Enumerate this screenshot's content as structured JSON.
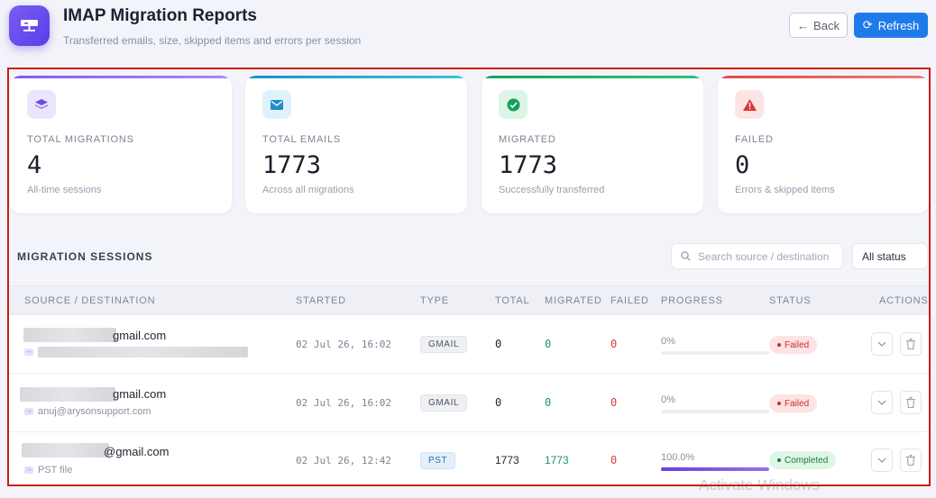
{
  "header": {
    "title": "IMAP Migration Reports",
    "subtitle": "Transferred emails, size, skipped items and errors per session",
    "back_label": "Back",
    "refresh_label": "Refresh"
  },
  "stats": [
    {
      "label": "TOTAL MIGRATIONS",
      "value": "4",
      "note": "All-time sessions",
      "accent": "#7c5cf0",
      "icon": "layers-icon"
    },
    {
      "label": "TOTAL EMAILS",
      "value": "1773",
      "note": "Across all migrations",
      "accent": "#1aa3c7",
      "icon": "envelope-icon"
    },
    {
      "label": "MIGRATED",
      "value": "1773",
      "note": "Successfully transferred",
      "accent": "#1fae6a",
      "icon": "check-circle-icon"
    },
    {
      "label": "FAILED",
      "value": "0",
      "note": "Errors & skipped items",
      "accent": "#e04848",
      "icon": "warning-icon"
    }
  ],
  "sessions": {
    "title": "MIGRATION SESSIONS",
    "search_placeholder": "Search source / destination",
    "status_filter": "All status"
  },
  "table": {
    "columns": [
      "SOURCE / DESTINATION",
      "STARTED",
      "TYPE",
      "TOTAL",
      "MIGRATED",
      "FAILED",
      "PROGRESS",
      "STATUS",
      "ACTIONS"
    ],
    "rows": [
      {
        "source": "gmail.com",
        "destination": "",
        "started": "02 Jul 26, 16:02",
        "type": "GMAIL",
        "total": "0",
        "migrated": "0",
        "failed": "0",
        "progress_label": "0%",
        "progress": 0,
        "status": "Failed"
      },
      {
        "source": "gmail.com",
        "destination": "anuj@arysonsupport.com",
        "started": "02 Jul 26, 16:02",
        "type": "GMAIL",
        "total": "0",
        "migrated": "0",
        "failed": "0",
        "progress_label": "0%",
        "progress": 0,
        "status": "Failed"
      },
      {
        "source": "@gmail.com",
        "destination": "PST file",
        "started": "02 Jul 26, 12:42",
        "type": "PST",
        "total": "1773",
        "migrated": "1773",
        "failed": "0",
        "progress_label": "100.0%",
        "progress": 1,
        "status": "Completed"
      }
    ]
  },
  "colors": {
    "primary": "#1f7bea",
    "migrated_text": "#1a9a5c",
    "failed_text": "#d63a3a",
    "highlight_frame": "#d11a1a"
  },
  "watermark": "Activate Windows"
}
